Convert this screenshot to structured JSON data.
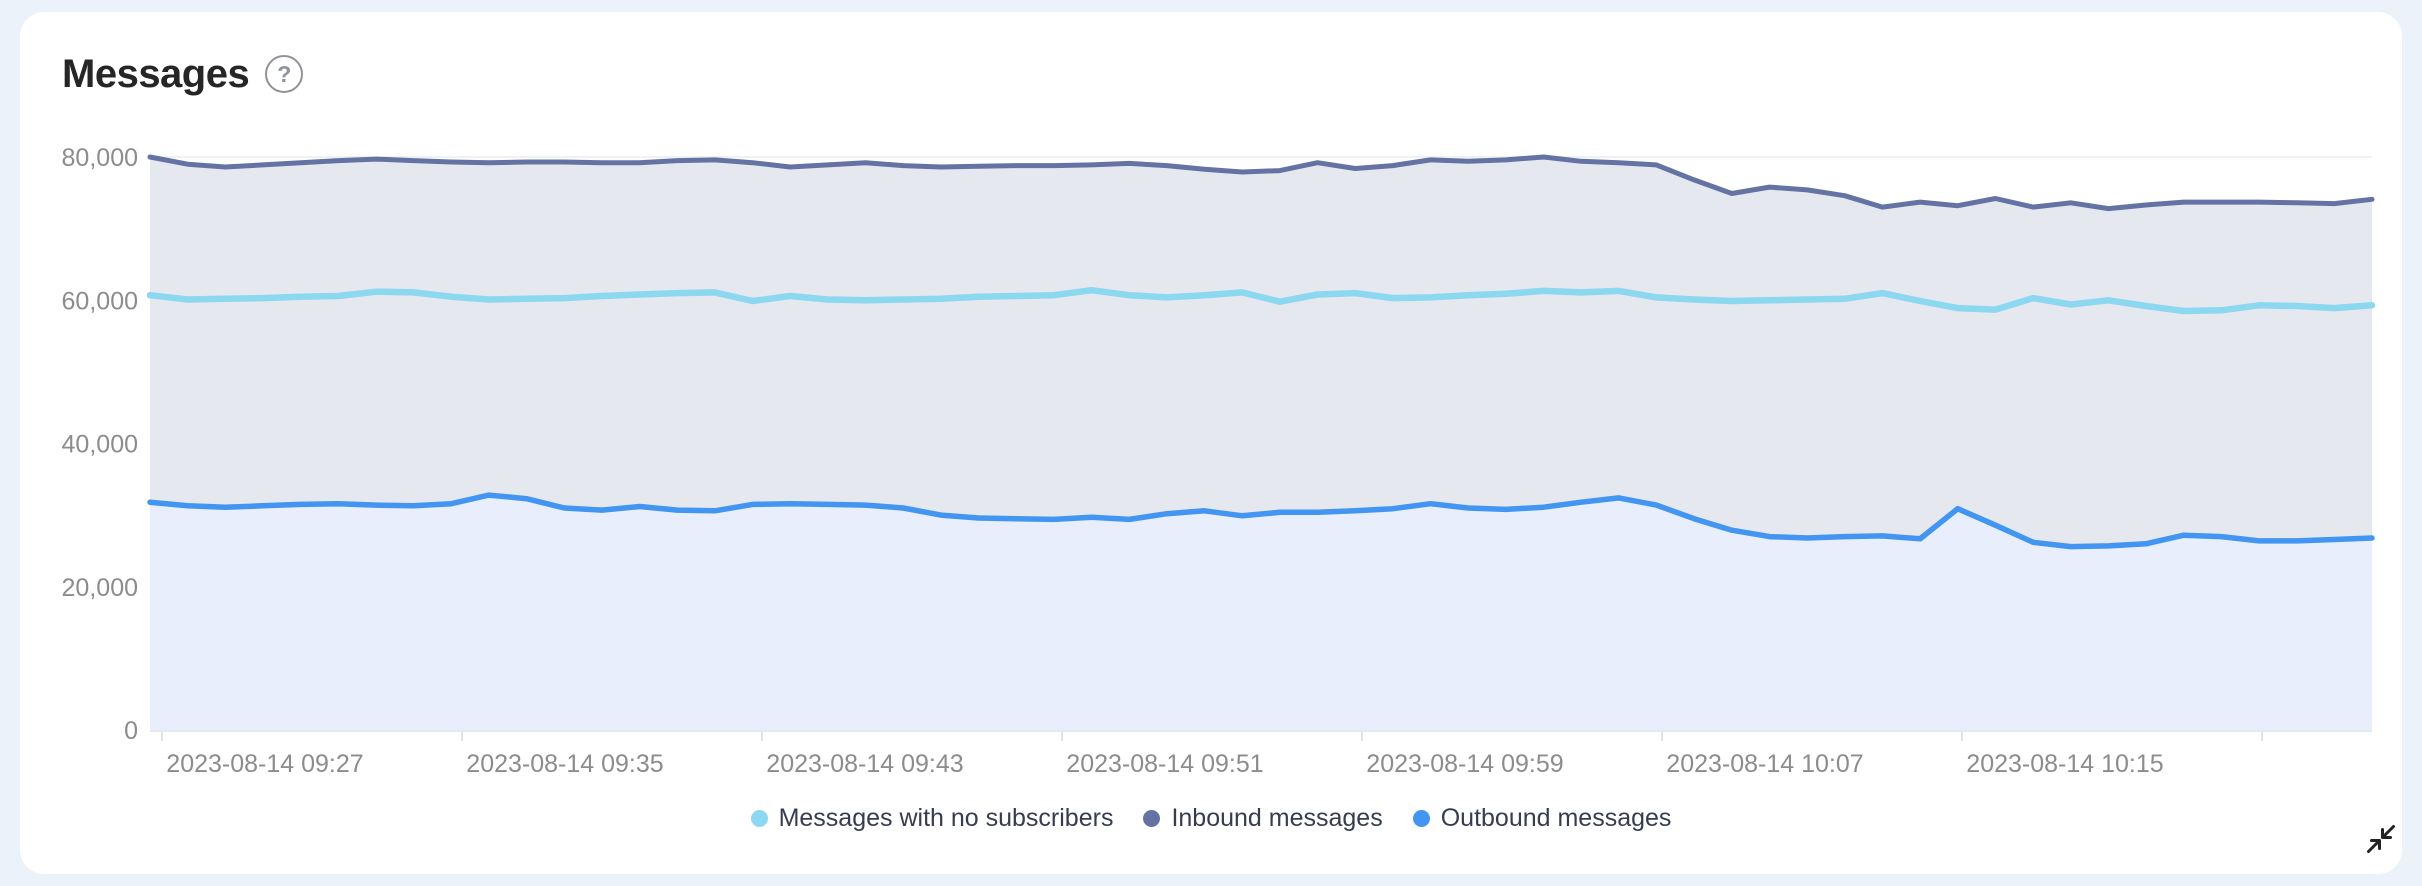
{
  "panel": {
    "title": "Messages"
  },
  "icons": {
    "help_glyph": "?",
    "collapse": "collapse-inward-arrows"
  },
  "colors": {
    "page_bg": "#ecf2fa",
    "card_bg": "#ffffff",
    "title_text": "#262626",
    "axis_text": "#8c8c8c",
    "grid_line": "#f0f1f4",
    "axis_line": "#e4e8f0",
    "legend_text": "#363d4f",
    "no_subscribers_line": "#8cd8f0",
    "inbound_line": "#6473a3",
    "inbound_fill": "#e6e8f0",
    "outbound_line": "#4295f0",
    "outbound_fill": "#e9eefc"
  },
  "chart_data": {
    "type": "area",
    "title": "Messages",
    "xlabel": "",
    "ylabel": "",
    "ylim": [
      0,
      80000
    ],
    "grid": "horizontal",
    "legend_position": "bottom",
    "x_start_time": "2023-08-14 09:24",
    "x_interval_minutes": 1,
    "x_tick_labels": [
      "2023-08-14 09:27",
      "2023-08-14 09:35",
      "2023-08-14 09:43",
      "2023-08-14 09:51",
      "2023-08-14 09:59",
      "2023-08-14 10:07",
      "2023-08-14 10:15"
    ],
    "y_ticks": [
      {
        "value": 0,
        "label": "0"
      },
      {
        "value": 20000,
        "label": "20,000"
      },
      {
        "value": 40000,
        "label": "40,000"
      },
      {
        "value": 60000,
        "label": "60,000"
      },
      {
        "value": 80000,
        "label": "80,000"
      }
    ],
    "series": [
      {
        "name": "Messages with no subscribers",
        "color": "#8cd8f0",
        "fill": null,
        "line_width": 6.5,
        "values": [
          60700,
          60100,
          60200,
          60300,
          60500,
          60600,
          61200,
          61100,
          60500,
          60100,
          60200,
          60300,
          60600,
          60800,
          61000,
          61100,
          59900,
          60600,
          60100,
          60000,
          60100,
          60200,
          60500,
          60600,
          60700,
          61400,
          60700,
          60400,
          60700,
          61100,
          59800,
          60800,
          61000,
          60300,
          60400,
          60700,
          60900,
          61300,
          61100,
          61300,
          60400,
          60100,
          59900,
          60000,
          60100,
          60200,
          61000,
          59900,
          58900,
          58700,
          60300,
          59400,
          60000,
          59200,
          58500,
          58600,
          59300,
          59200,
          58900,
          59300
        ]
      },
      {
        "name": "Inbound messages",
        "color": "#6473a3",
        "fill": "#e6e8f0",
        "line_width": 5,
        "values": [
          80000,
          79000,
          78600,
          78900,
          79200,
          79500,
          79700,
          79500,
          79300,
          79200,
          79300,
          79300,
          79200,
          79200,
          79500,
          79600,
          79200,
          78600,
          78900,
          79200,
          78800,
          78600,
          78700,
          78800,
          78800,
          78900,
          79100,
          78800,
          78300,
          77900,
          78100,
          79200,
          78400,
          78800,
          79600,
          79400,
          79600,
          80000,
          79400,
          79200,
          78900,
          76800,
          74900,
          75800,
          75400,
          74600,
          73000,
          73700,
          73200,
          74200,
          73000,
          73600,
          72800,
          73300,
          73700,
          73700,
          73700,
          73600,
          73500,
          74100
        ]
      },
      {
        "name": "Outbound messages",
        "color": "#4295f0",
        "fill": "#e9eefc",
        "line_width": 5.5,
        "values": [
          31800,
          31300,
          31100,
          31300,
          31500,
          31600,
          31400,
          31300,
          31600,
          32800,
          32300,
          31000,
          30700,
          31200,
          30700,
          30600,
          31500,
          31600,
          31500,
          31400,
          31000,
          30000,
          29600,
          29500,
          29400,
          29700,
          29400,
          30200,
          30600,
          29900,
          30400,
          30400,
          30600,
          30900,
          31600,
          31000,
          30800,
          31100,
          31800,
          32400,
          31400,
          29500,
          27900,
          27000,
          26800,
          27000,
          27100,
          26700,
          30900,
          28600,
          26200,
          25600,
          25700,
          26000,
          27200,
          27000,
          26400,
          26400,
          26600,
          26800
        ]
      }
    ]
  }
}
